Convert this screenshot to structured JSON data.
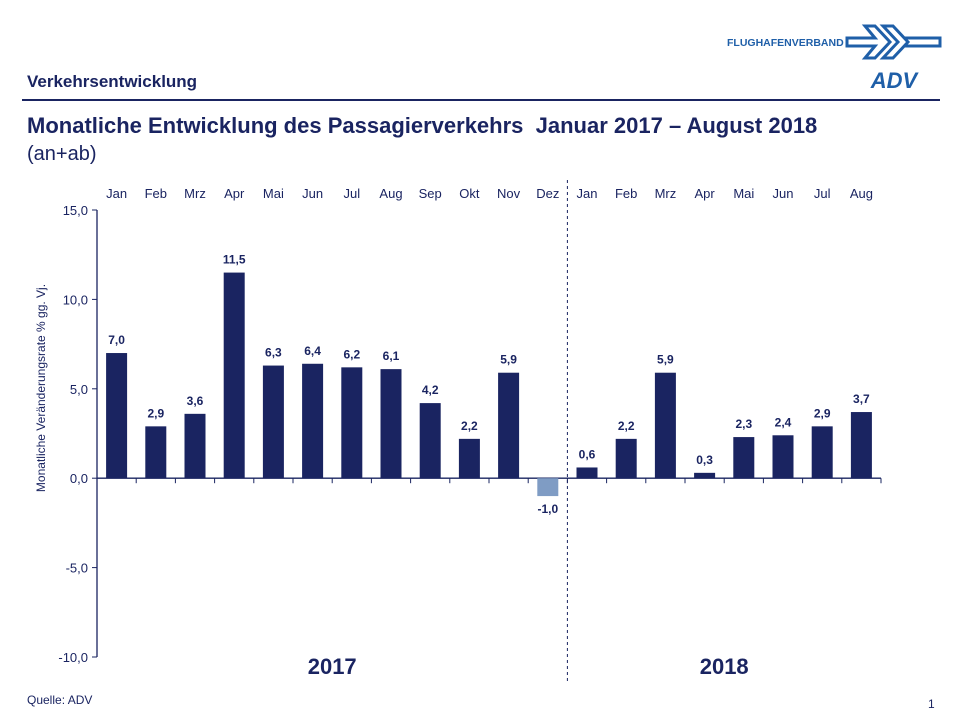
{
  "header": {
    "section": "Verkehrsentwicklung",
    "title": "Monatliche Entwicklung des Passagierverkehrs  Januar 2017 – August 2018",
    "subtitle": "(an+ab)",
    "logo_text": "FLUGHAFENVERBAND",
    "logo_mark": "ADV"
  },
  "footer": {
    "source": "Quelle: ADV",
    "page": "1"
  },
  "colors": {
    "bar": "#1a2461",
    "negative_bar": "#7f9cc4",
    "text": "#1a2461",
    "logo": "#1f5fa8"
  },
  "chart_data": {
    "type": "bar",
    "title": "",
    "ylabel": "Monatliche Veränderungsrate % gg. Vj.",
    "ylim": [
      -10,
      15
    ],
    "yticks": [
      15,
      10,
      5,
      0,
      -5,
      -10
    ],
    "ytick_labels": [
      "15,0",
      "10,0",
      "5,0",
      "0,0",
      "-5,0",
      "-10,0"
    ],
    "categories": [
      "Jan",
      "Feb",
      "Mrz",
      "Apr",
      "Mai",
      "Jun",
      "Jul",
      "Aug",
      "Sep",
      "Okt",
      "Nov",
      "Dez",
      "Jan",
      "Feb",
      "Mrz",
      "Apr",
      "Mai",
      "Jun",
      "Jul",
      "Aug"
    ],
    "values": [
      7.0,
      2.9,
      3.6,
      11.5,
      6.3,
      6.4,
      6.2,
      6.1,
      4.2,
      2.2,
      5.9,
      -1.0,
      0.6,
      2.2,
      5.9,
      0.3,
      2.3,
      2.4,
      2.9,
      3.7
    ],
    "value_labels": [
      "7,0",
      "2,9",
      "3,6",
      "11,5",
      "6,3",
      "6,4",
      "6,2",
      "6,1",
      "4,2",
      "2,2",
      "5,9",
      "-1,0",
      "0,6",
      "2,2",
      "5,9",
      "0,3",
      "2,3",
      "2,4",
      "2,9",
      "3,7"
    ],
    "groups": [
      {
        "label": "2017",
        "months": 12
      },
      {
        "label": "2018",
        "months": 8
      }
    ],
    "grid": false
  }
}
